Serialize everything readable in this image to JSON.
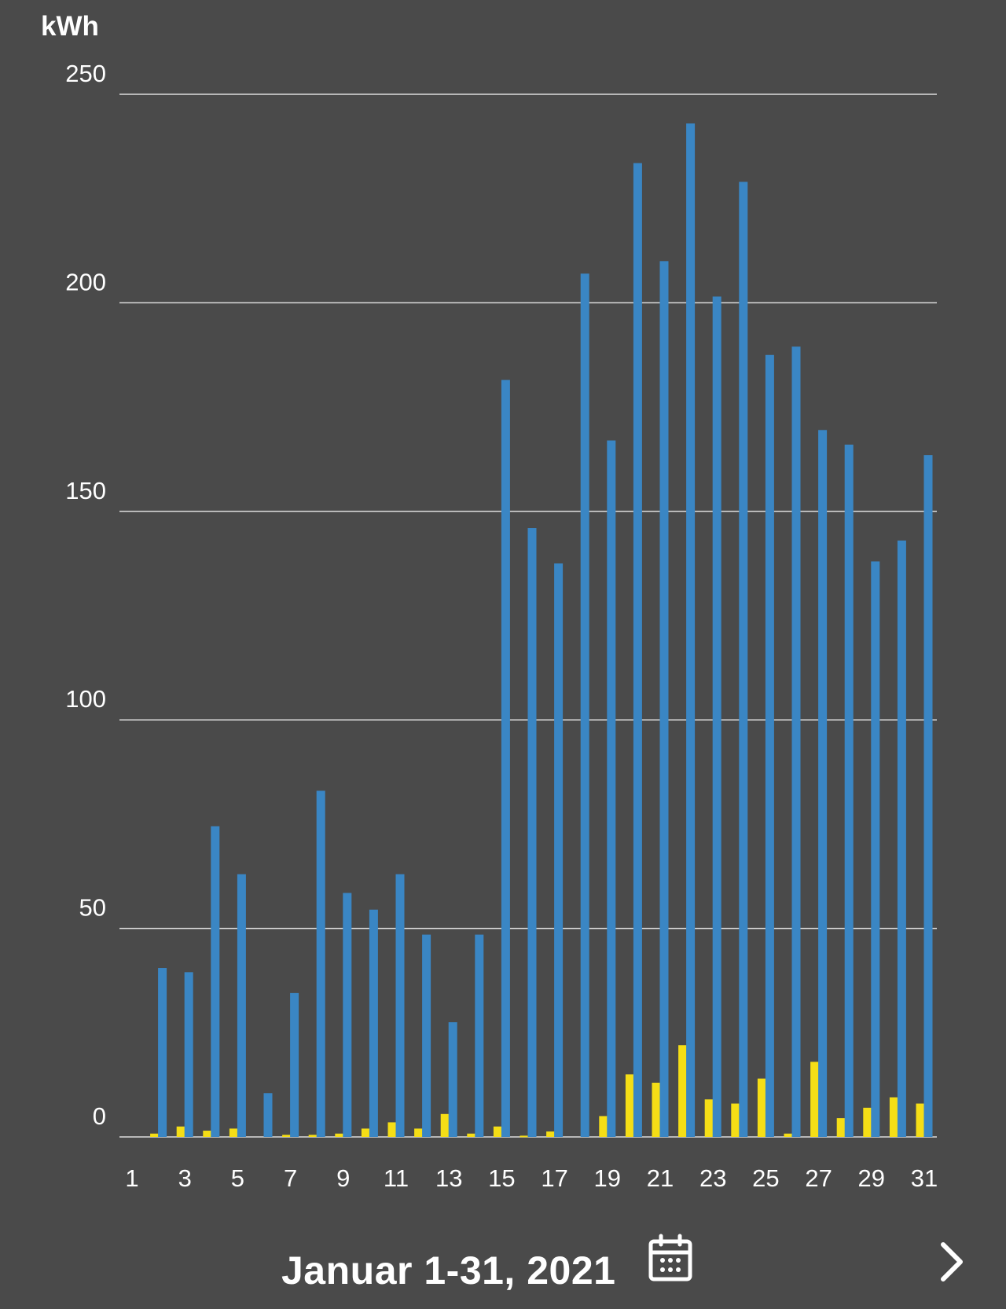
{
  "chart_data": {
    "type": "bar",
    "ylabel": "kWh",
    "ylim": [
      0,
      250
    ],
    "yticks": [
      "0",
      "50",
      "100",
      "150",
      "200",
      "250"
    ],
    "grid": true,
    "categories": [
      "1",
      "2",
      "3",
      "4",
      "5",
      "6",
      "7",
      "8",
      "9",
      "10",
      "11",
      "12",
      "13",
      "14",
      "15",
      "16",
      "17",
      "18",
      "19",
      "20",
      "21",
      "22",
      "23",
      "24",
      "25",
      "26",
      "27",
      "28",
      "29",
      "30",
      "31"
    ],
    "x_tick_labels": [
      "1",
      "3",
      "5",
      "7",
      "9",
      "11",
      "13",
      "15",
      "17",
      "19",
      "21",
      "23",
      "25",
      "27",
      "29",
      "31"
    ],
    "series": [
      {
        "color": "#3a86c4",
        "values": [
          0,
          40.5,
          39.5,
          74.5,
          63,
          10.5,
          34.5,
          83,
          58.5,
          54.5,
          63,
          48.5,
          27.5,
          48.5,
          181.5,
          146,
          137.5,
          207,
          167,
          233.5,
          210,
          243,
          201.5,
          229,
          187.5,
          189.5,
          169.5,
          166,
          138,
          143,
          163.5
        ]
      },
      {
        "color": "#f5de16",
        "values": [
          0,
          0.8,
          2.5,
          1.5,
          2,
          0,
          0.5,
          0.5,
          0.8,
          2,
          3.5,
          2,
          5.5,
          0.8,
          2.5,
          0.3,
          1.3,
          0,
          5,
          15,
          13,
          22,
          9,
          8,
          14,
          0.8,
          18,
          4.5,
          7,
          9.5,
          8
        ]
      }
    ]
  },
  "colors": {
    "background": "#4a4a4a",
    "gridline": "#dddddd",
    "text": "#ffffff",
    "secondary_bar_accent": "#f0a800"
  },
  "footer": {
    "date_range": "Januar 1-31, 2021",
    "calendar_icon": "calendar-icon",
    "next_icon": "chevron-right-icon"
  }
}
